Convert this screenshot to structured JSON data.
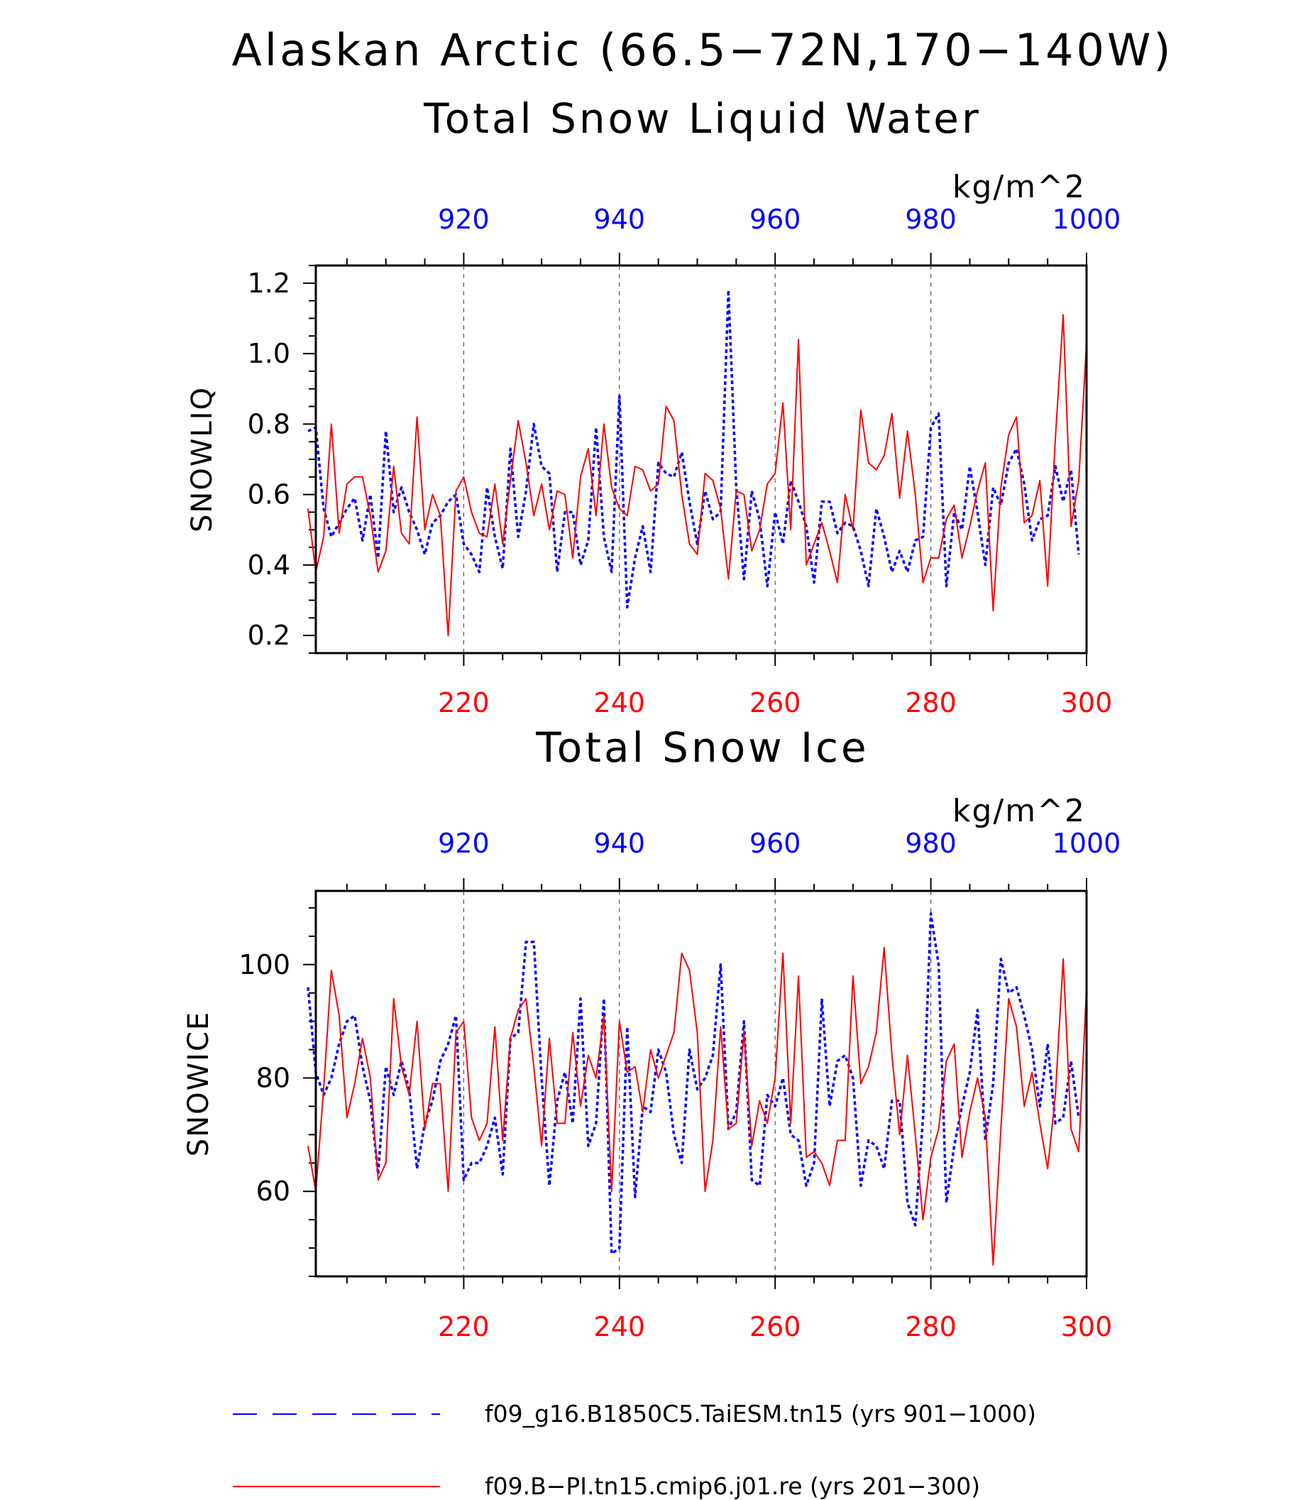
{
  "title": "Alaskan Arctic (66.5−72N,170−140W)",
  "colors": {
    "model_blue": "#0000ff",
    "model_red": "#ff0000",
    "axis": "#000000"
  },
  "legend": [
    {
      "label": "f09_g16.B1850C5.TaiESM.tn15 (yrs 901−1000)",
      "color": "#0000ff",
      "style": "dashed"
    },
    {
      "label": "f09.B−PI.tn15.cmip6.j01.re (yrs 201−300)",
      "color": "#ff0000",
      "style": "solid"
    }
  ],
  "chart_data": [
    {
      "type": "line",
      "title": "Total Snow Liquid Water",
      "units": "kg/m^2",
      "ylabel": "SNOWLIQ",
      "ylim": [
        0.15,
        1.25
      ],
      "yticks": [
        "0.2",
        "0.4",
        "0.6",
        "0.8",
        "1.0",
        "1.2"
      ],
      "ytick_values": [
        0.2,
        0.4,
        0.6,
        0.8,
        1.0,
        1.2
      ],
      "x_bottom": {
        "range": [
          201,
          300
        ],
        "tick_values": [
          220,
          240,
          260,
          280,
          300
        ],
        "tick_labels": [
          "220",
          "240",
          "260",
          "280",
          "300"
        ],
        "color": "#ff0000"
      },
      "x_top": {
        "range": [
          901,
          1000
        ],
        "tick_values": [
          920,
          940,
          960,
          980,
          1000
        ],
        "tick_labels": [
          "920",
          "940",
          "960",
          "980",
          "1000"
        ],
        "color": "#0000ff"
      },
      "grid": "vertical dashed at labeled ticks",
      "series": [
        {
          "axis": "top",
          "color": "#0000ff",
          "style": "dotted",
          "values": [
            0.78,
            0.79,
            0.56,
            0.48,
            0.52,
            0.56,
            0.59,
            0.47,
            0.6,
            0.42,
            0.78,
            0.55,
            0.62,
            0.55,
            0.5,
            0.43,
            0.52,
            0.54,
            0.58,
            0.6,
            0.46,
            0.43,
            0.38,
            0.62,
            0.48,
            0.39,
            0.73,
            0.48,
            0.61,
            0.8,
            0.68,
            0.66,
            0.38,
            0.55,
            0.55,
            0.4,
            0.47,
            0.79,
            0.48,
            0.38,
            0.88,
            0.28,
            0.42,
            0.51,
            0.38,
            0.69,
            0.66,
            0.65,
            0.72,
            0.58,
            0.46,
            0.61,
            0.53,
            0.55,
            1.18,
            0.62,
            0.36,
            0.61,
            0.53,
            0.34,
            0.55,
            0.46,
            0.64,
            0.58,
            0.51,
            0.35,
            0.58,
            0.58,
            0.49,
            0.52,
            0.51,
            0.44,
            0.34,
            0.56,
            0.48,
            0.38,
            0.44,
            0.38,
            0.47,
            0.48,
            0.79,
            0.83,
            0.34,
            0.55,
            0.5,
            0.68,
            0.55,
            0.4,
            0.62,
            0.57,
            0.69,
            0.73,
            0.63,
            0.47,
            0.53,
            0.54,
            0.68,
            0.58,
            0.67,
            0.43
          ]
        },
        {
          "axis": "bottom",
          "color": "#ff0000",
          "style": "solid",
          "values": [
            0.56,
            0.38,
            0.48,
            0.8,
            0.49,
            0.63,
            0.65,
            0.65,
            0.54,
            0.38,
            0.44,
            0.68,
            0.49,
            0.46,
            0.82,
            0.5,
            0.6,
            0.54,
            0.2,
            0.61,
            0.65,
            0.55,
            0.49,
            0.48,
            0.63,
            0.46,
            0.64,
            0.81,
            0.69,
            0.54,
            0.63,
            0.5,
            0.61,
            0.6,
            0.42,
            0.65,
            0.73,
            0.54,
            0.8,
            0.62,
            0.56,
            0.54,
            0.68,
            0.67,
            0.61,
            0.63,
            0.85,
            0.81,
            0.6,
            0.46,
            0.43,
            0.66,
            0.64,
            0.56,
            0.36,
            0.61,
            0.6,
            0.44,
            0.5,
            0.63,
            0.66,
            0.86,
            0.5,
            1.04,
            0.4,
            0.46,
            0.52,
            0.44,
            0.35,
            0.6,
            0.5,
            0.84,
            0.69,
            0.67,
            0.71,
            0.83,
            0.59,
            0.78,
            0.6,
            0.35,
            0.42,
            0.42,
            0.53,
            0.57,
            0.42,
            0.51,
            0.61,
            0.69,
            0.27,
            0.62,
            0.77,
            0.82,
            0.52,
            0.54,
            0.64,
            0.34,
            0.76,
            1.11,
            0.51,
            0.64,
            1.03
          ]
        }
      ]
    },
    {
      "type": "line",
      "title": "Total Snow Ice",
      "units": "kg/m^2",
      "ylabel": "SNOWICE",
      "ylim": [
        45,
        113
      ],
      "yticks": [
        "60",
        "80",
        "100"
      ],
      "ytick_values": [
        60,
        80,
        100
      ],
      "x_bottom": {
        "range": [
          201,
          300
        ],
        "tick_values": [
          220,
          240,
          260,
          280,
          300
        ],
        "tick_labels": [
          "220",
          "240",
          "260",
          "280",
          "300"
        ],
        "color": "#ff0000"
      },
      "x_top": {
        "range": [
          901,
          1000
        ],
        "tick_values": [
          920,
          940,
          960,
          980,
          1000
        ],
        "tick_labels": [
          "920",
          "940",
          "960",
          "980",
          "1000"
        ],
        "color": "#0000ff"
      },
      "grid": "vertical dashed at labeled ticks",
      "series": [
        {
          "axis": "top",
          "color": "#0000ff",
          "style": "dotted",
          "values": [
            96,
            81,
            77,
            80,
            86,
            90,
            91,
            82,
            76,
            63,
            82,
            77,
            83,
            78,
            64,
            72,
            76,
            83,
            86,
            91,
            62,
            65,
            65,
            68,
            73,
            63,
            87,
            88,
            104,
            104,
            80,
            61,
            76,
            81,
            72,
            94,
            68,
            72,
            94,
            49,
            50,
            89,
            59,
            75,
            74,
            85,
            81,
            70,
            65,
            85,
            78,
            80,
            84,
            100,
            71,
            74,
            90,
            62,
            61,
            77,
            75,
            80,
            70,
            69,
            61,
            65,
            94,
            75,
            83,
            84,
            80,
            61,
            69,
            68,
            64,
            76,
            76,
            58,
            54,
            73,
            109,
            100,
            58,
            68,
            75,
            81,
            92,
            69,
            79,
            101,
            95,
            96,
            91,
            85,
            75,
            86,
            72,
            73,
            83,
            73
          ]
        },
        {
          "axis": "bottom",
          "color": "#ff0000",
          "style": "solid",
          "values": [
            68,
            60,
            78,
            99,
            91,
            73,
            79,
            87,
            80,
            62,
            65,
            94,
            82,
            77,
            90,
            71,
            79,
            79,
            60,
            88,
            90,
            73,
            69,
            72,
            89,
            69,
            87,
            92,
            94,
            82,
            68,
            87,
            72,
            72,
            88,
            75,
            84,
            80,
            91,
            60,
            90,
            81,
            82,
            74,
            85,
            80,
            84,
            88,
            102,
            99,
            88,
            60,
            69,
            89,
            71,
            72,
            88,
            68,
            76,
            72,
            80,
            102,
            72,
            98,
            66,
            67,
            65,
            61,
            69,
            69,
            98,
            79,
            82,
            88,
            103,
            84,
            70,
            84,
            70,
            55,
            66,
            71,
            83,
            86,
            66,
            74,
            80,
            73,
            47,
            71,
            94,
            89,
            75,
            81,
            72,
            64,
            77,
            101,
            71,
            67,
            96
          ]
        }
      ]
    }
  ]
}
